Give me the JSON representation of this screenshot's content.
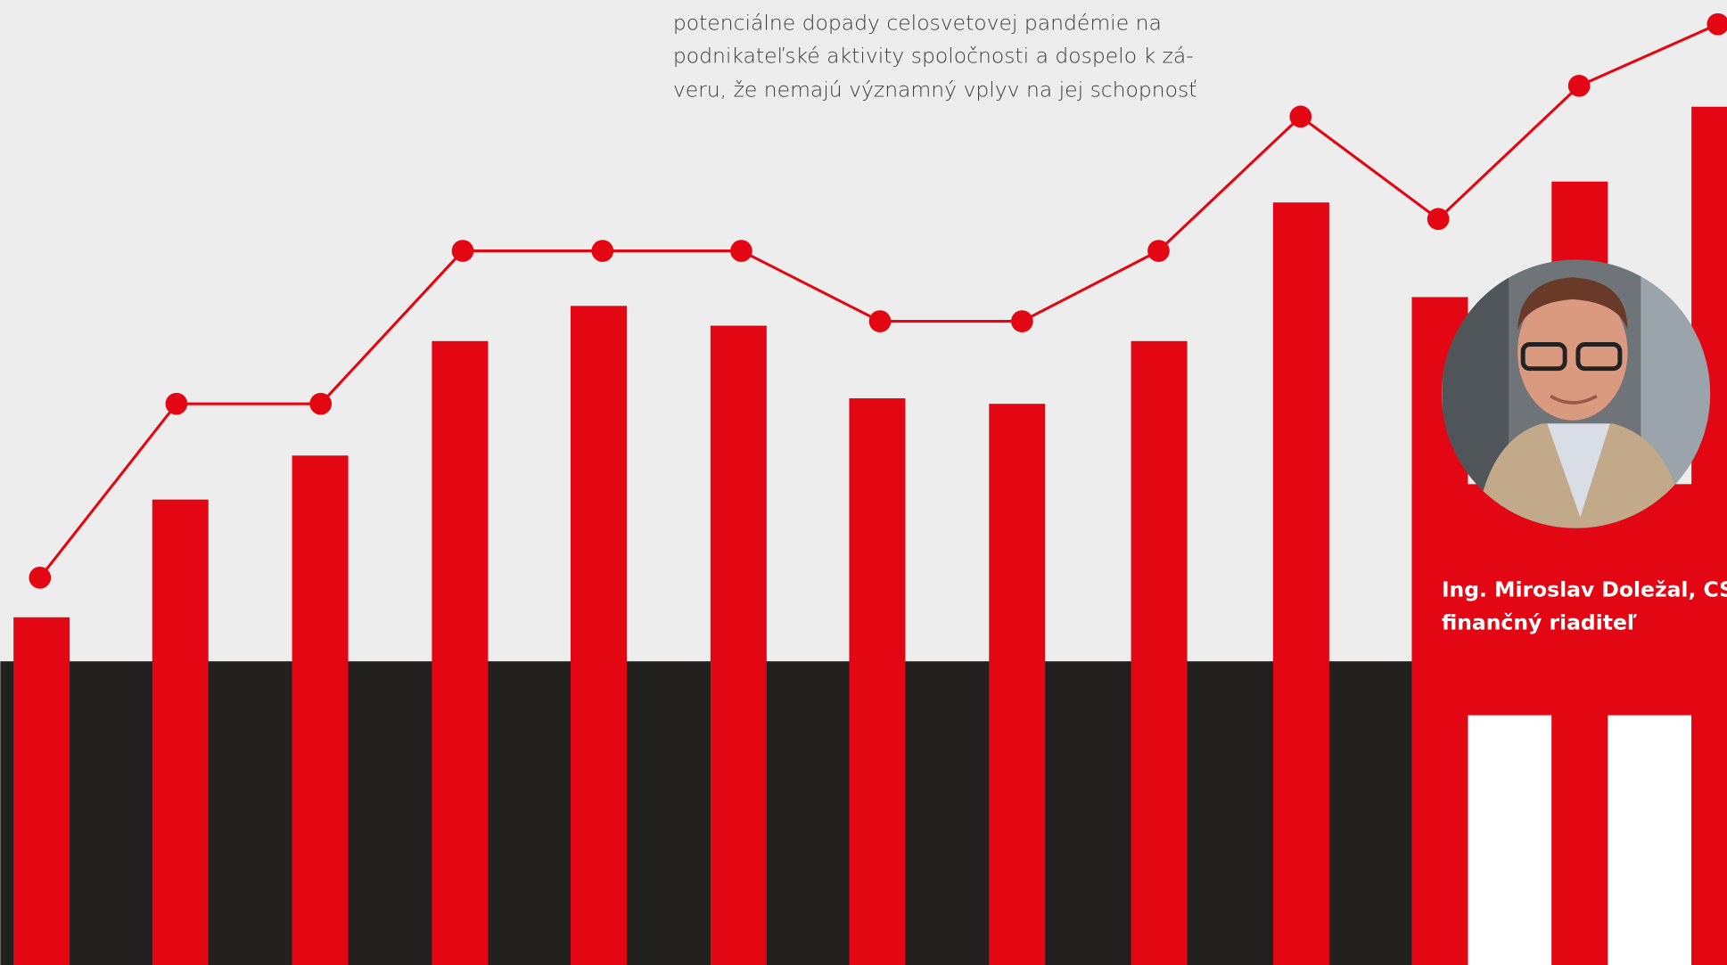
{
  "article": {
    "text_lines": [
      "potenciálne dopady celosvetovej pandémie na",
      "podnikateľské aktivity spoločnosti a dospelo k zá-",
      "veru, že nemajú významný vplyv na jej schopnosť"
    ]
  },
  "caption": {
    "name": "Ing. Miroslav Doležal, CSc.,",
    "role": "finančný riaditeľ"
  }
}
